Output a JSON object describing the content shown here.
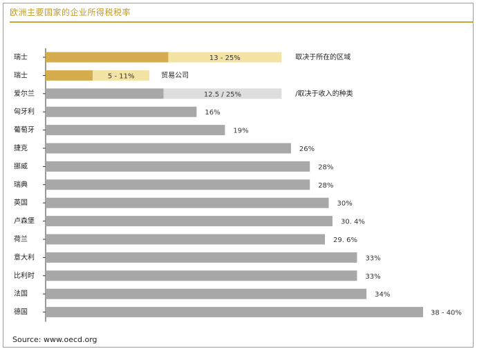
{
  "chart_data": {
    "type": "bar",
    "orientation": "horizontal",
    "title": "欧洲主要国家的企业所得税税率",
    "source": "Source: www.oecd.org",
    "xlim": [
      0,
      40
    ],
    "grid": false,
    "categories": [
      "瑞士",
      "瑞士",
      "爱尔兰",
      "匈牙利",
      "葡萄牙",
      "捷克",
      "挪威",
      "瑞典",
      "英国",
      "卢森堡",
      "荷兰",
      "意大利",
      "比利时",
      "法国",
      "德国"
    ],
    "bars": [
      {
        "country": "瑞士",
        "low": 13,
        "high": 25,
        "label": "13 - 25%",
        "note": "取决于所在的区域",
        "style": "gold"
      },
      {
        "country": "瑞士",
        "low": 5,
        "high": 11,
        "label": "5 - 11%",
        "note": "贸易公司",
        "style": "gold"
      },
      {
        "country": "爱尔兰",
        "low": 12.5,
        "high": 25,
        "label": "12.5 / 25%",
        "note": "/取决于收入的种类",
        "style": "grey-range"
      },
      {
        "country": "匈牙利",
        "value": 16,
        "label": "16%"
      },
      {
        "country": "葡萄牙",
        "value": 19,
        "label": "19%"
      },
      {
        "country": "捷克",
        "value": 26,
        "label": "26%"
      },
      {
        "country": "挪威",
        "value": 28,
        "label": "28%"
      },
      {
        "country": "瑞典",
        "value": 28,
        "label": "28%"
      },
      {
        "country": "英国",
        "value": 30,
        "label": "30%"
      },
      {
        "country": "卢森堡",
        "value": 30.4,
        "label": "30. 4%"
      },
      {
        "country": "荷兰",
        "value": 29.6,
        "label": "29. 6%"
      },
      {
        "country": "意大利",
        "value": 33,
        "label": "33%"
      },
      {
        "country": "比利时",
        "value": 33,
        "label": "33%"
      },
      {
        "country": "法国",
        "value": 34,
        "label": "34%"
      },
      {
        "country": "德国",
        "low": 38,
        "high": 40,
        "label": "38 - 40%"
      }
    ]
  },
  "colors": {
    "gold_dark": "#d5ad4f",
    "gold_light": "#f3e3a5",
    "grey_bar": "#a8a8a8",
    "grey_light": "#dedede",
    "title": "#c29a2a",
    "axis": "#333333"
  }
}
